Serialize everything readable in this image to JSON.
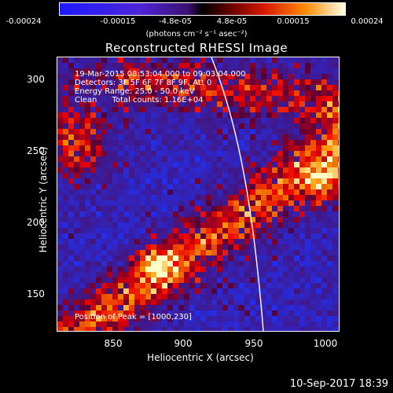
{
  "colorbar": {
    "ticks": [
      "-0.00024",
      "-0.00015",
      "-4.8e-05",
      "4.8e-05",
      "0.00015",
      "0.00024"
    ],
    "unit": "(photons cm⁻² s⁻¹ asec⁻²)"
  },
  "title": "Reconstructed RHESSI Image",
  "annotation": {
    "line1": "19-Mar-2015 08:53:04.000 to 09:03:04.000",
    "line2": "Detectors: 3F 5F 6F 7F 8F 9F, Att 0",
    "line3": "Energy Range: 25.0 - 50.0 keV",
    "line4": "Clean      Total counts: 1.16E+04",
    "peak": "Position of Peak = [1000,230]"
  },
  "axes": {
    "xlabel": "Heliocentric X (arcsec)",
    "ylabel": "Heliocentric Y (arcsec)",
    "xticks": [
      "850",
      "900",
      "950",
      "1000"
    ],
    "yticks": [
      "300",
      "250",
      "200",
      "150"
    ]
  },
  "footer": {
    "timestamp": "10-Sep-2017 18:39"
  }
}
